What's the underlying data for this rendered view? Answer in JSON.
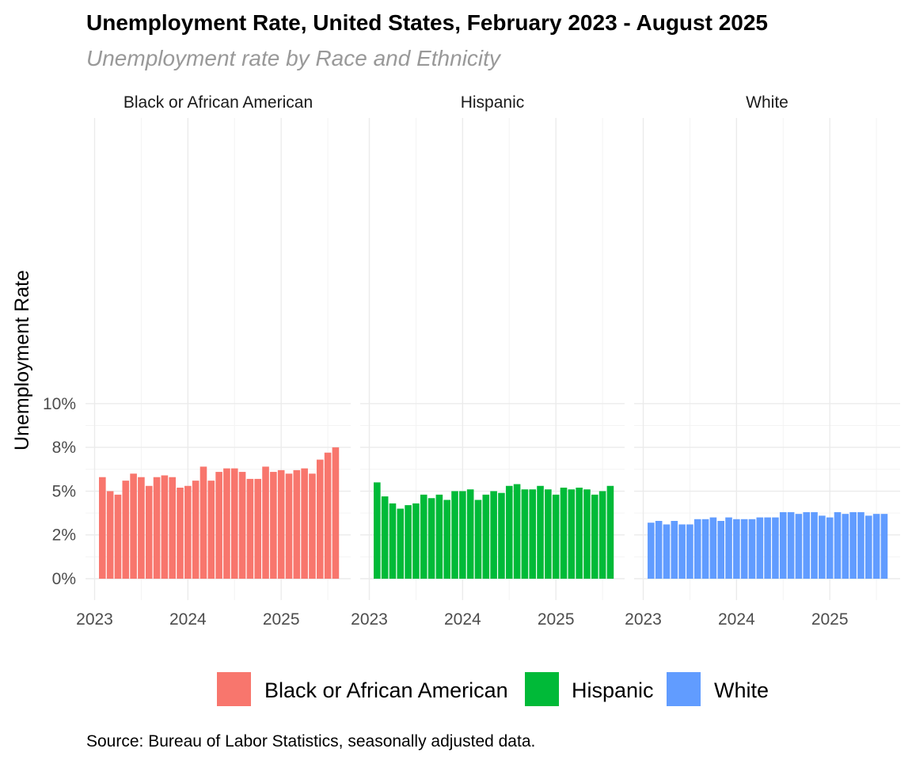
{
  "chart_data": {
    "type": "bar",
    "title": "Unemployment Rate, United States, February 2023 - August 2025",
    "subtitle": "Unemployment rate by Race and Ethnicity",
    "ylabel": "Unemployment Rate",
    "xlabel": "",
    "ylim": [
      0,
      10.5
    ],
    "yticks": [
      0,
      2.5,
      5,
      7.5,
      10
    ],
    "ytick_labels": [
      "0%",
      "2%",
      "5%",
      "8%",
      "10%"
    ],
    "xticks": [
      "2023",
      "2024",
      "2025"
    ],
    "grid": true,
    "legend_position": "bottom",
    "x_start": "2023-02",
    "x_end": "2025-08",
    "x": [
      "2023-02",
      "2023-03",
      "2023-04",
      "2023-05",
      "2023-06",
      "2023-07",
      "2023-08",
      "2023-09",
      "2023-10",
      "2023-11",
      "2023-12",
      "2024-01",
      "2024-02",
      "2024-03",
      "2024-04",
      "2024-05",
      "2024-06",
      "2024-07",
      "2024-08",
      "2024-09",
      "2024-10",
      "2024-11",
      "2024-12",
      "2025-01",
      "2025-02",
      "2025-03",
      "2025-04",
      "2025-05",
      "2025-06",
      "2025-07",
      "2025-08"
    ],
    "series": [
      {
        "name": "Black or African American",
        "color": "#F8766D",
        "values": [
          5.8,
          5.0,
          4.8,
          5.6,
          6.0,
          5.8,
          5.3,
          5.8,
          5.9,
          5.8,
          5.2,
          5.3,
          5.6,
          6.4,
          5.6,
          6.1,
          6.3,
          6.3,
          6.1,
          5.7,
          5.7,
          6.4,
          6.1,
          6.2,
          6.0,
          6.2,
          6.3,
          6.0,
          6.8,
          7.2,
          7.5
        ]
      },
      {
        "name": "Hispanic",
        "color": "#00BA38",
        "values": [
          5.5,
          4.7,
          4.3,
          4.0,
          4.2,
          4.3,
          4.8,
          4.6,
          4.8,
          4.5,
          5.0,
          5.0,
          5.1,
          4.5,
          4.8,
          5.0,
          4.9,
          5.3,
          5.4,
          5.1,
          5.1,
          5.3,
          5.1,
          4.8,
          5.2,
          5.1,
          5.2,
          5.1,
          4.8,
          5.0,
          5.3
        ]
      },
      {
        "name": "White",
        "color": "#619CFF",
        "values": [
          3.2,
          3.3,
          3.1,
          3.3,
          3.1,
          3.1,
          3.4,
          3.4,
          3.5,
          3.3,
          3.5,
          3.4,
          3.4,
          3.4,
          3.5,
          3.5,
          3.5,
          3.8,
          3.8,
          3.7,
          3.8,
          3.8,
          3.6,
          3.5,
          3.8,
          3.7,
          3.8,
          3.8,
          3.6,
          3.7,
          3.7
        ]
      }
    ],
    "facets": [
      "Black or African American",
      "Hispanic",
      "White"
    ]
  },
  "caption": "Source: Bureau of Labor Statistics, seasonally adjusted data."
}
